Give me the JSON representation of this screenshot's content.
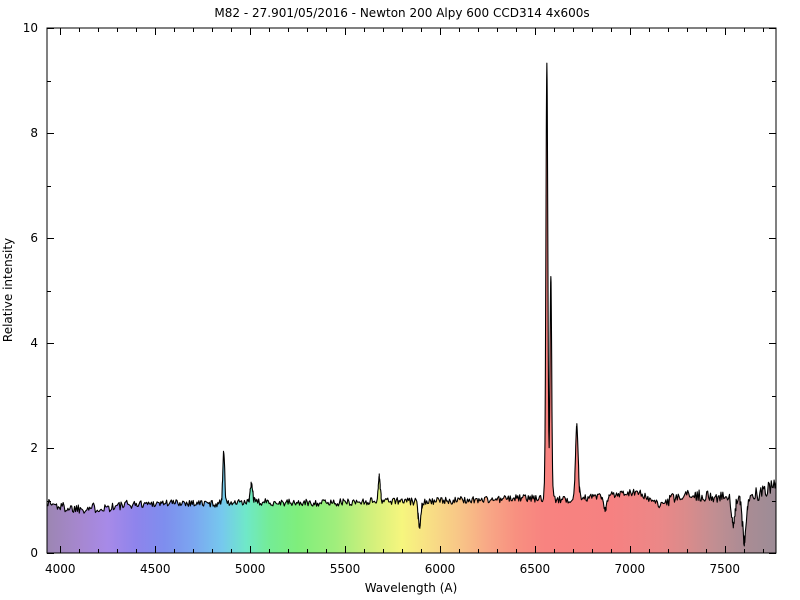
{
  "figure": {
    "background": "#ffffff"
  },
  "chart_data": {
    "type": "area",
    "title": "M82 - 27.901/05/2016 - Newton 200 Alpy 600 CCD314 4x600s",
    "xlabel": "Wavelength (A)",
    "ylabel": "Relative intensity",
    "xlim": [
      3930,
      7770
    ],
    "ylim": [
      0,
      10
    ],
    "x_major_ticks": [
      4000,
      4500,
      5000,
      5500,
      6000,
      6500,
      7000,
      7500
    ],
    "x_minor_step": 100,
    "y_major_ticks": [
      0,
      2,
      4,
      6,
      8,
      10
    ],
    "y_minor_step": 1,
    "grid": false,
    "legend": false,
    "line_color": "#000000",
    "frame_color": "#000000",
    "sampling_step_angstrom": 5,
    "continuum_anchors": [
      [
        3930,
        0.97
      ],
      [
        3990,
        0.89
      ],
      [
        4060,
        0.85
      ],
      [
        4180,
        0.86
      ],
      [
        4280,
        0.88
      ],
      [
        4400,
        0.93
      ],
      [
        4520,
        0.95
      ],
      [
        4650,
        0.96
      ],
      [
        4800,
        0.94
      ],
      [
        4950,
        0.95
      ],
      [
        5100,
        0.97
      ],
      [
        5250,
        0.95
      ],
      [
        5400,
        0.96
      ],
      [
        5550,
        0.97
      ],
      [
        5700,
        1.0
      ],
      [
        5850,
        0.98
      ],
      [
        6000,
        0.99
      ],
      [
        6150,
        1.01
      ],
      [
        6300,
        1.02
      ],
      [
        6430,
        1.05
      ],
      [
        6550,
        1.03
      ],
      [
        6650,
        1.01
      ],
      [
        6800,
        1.06
      ],
      [
        6930,
        1.13
      ],
      [
        7040,
        1.17
      ],
      [
        7110,
        1.0
      ],
      [
        7160,
        0.9
      ],
      [
        7240,
        1.05
      ],
      [
        7340,
        1.1
      ],
      [
        7440,
        1.07
      ],
      [
        7540,
        1.06
      ],
      [
        7650,
        1.08
      ],
      [
        7720,
        1.18
      ],
      [
        7770,
        1.28
      ]
    ],
    "features": [
      {
        "label": "emission-4861",
        "center": 4861,
        "sigma": 5,
        "amplitude": 1.0
      },
      {
        "label": "emission-5007",
        "center": 5007,
        "sigma": 7,
        "amplitude": 0.34
      },
      {
        "label": "emission-5680",
        "center": 5680,
        "sigma": 5,
        "amplitude": 0.46
      },
      {
        "label": "absorption-5892",
        "center": 5892,
        "sigma": 7,
        "amplitude": -0.46
      },
      {
        "label": "emission-6563",
        "center": 6563,
        "sigma": 5,
        "amplitude": 8.3
      },
      {
        "label": "emission-6584",
        "center": 6584,
        "sigma": 4.5,
        "amplitude": 4.25
      },
      {
        "label": "emission-6721",
        "center": 6721,
        "sigma": 7,
        "amplitude": 1.4
      },
      {
        "label": "absorption-6870",
        "center": 6870,
        "sigma": 10,
        "amplitude": -0.28
      },
      {
        "label": "absorption-7545",
        "center": 7545,
        "sigma": 9,
        "amplitude": -0.56
      },
      {
        "label": "absorption-7603",
        "center": 7603,
        "sigma": 11,
        "amplitude": -0.78
      }
    ],
    "noise": {
      "seed": 1337,
      "bands": [
        {
          "up_to": 4350,
          "amplitude": 0.1
        },
        {
          "up_to": 7200,
          "amplitude": 0.07
        },
        {
          "up_to": 7580,
          "amplitude": 0.11
        },
        {
          "up_to": 7780,
          "amplitude": 0.16
        }
      ]
    },
    "gradient_stops": [
      [
        3930,
        "#9c86b2"
      ],
      [
        4100,
        "#a687cf"
      ],
      [
        4250,
        "#a78ae8"
      ],
      [
        4400,
        "#8e84ec"
      ],
      [
        4550,
        "#7e8eee"
      ],
      [
        4700,
        "#7ba6f0"
      ],
      [
        4850,
        "#76c8ee"
      ],
      [
        4980,
        "#6fe8c8"
      ],
      [
        5100,
        "#74ec96"
      ],
      [
        5250,
        "#7fee7c"
      ],
      [
        5450,
        "#a0ee7c"
      ],
      [
        5650,
        "#d4f07c"
      ],
      [
        5800,
        "#f6f67e"
      ],
      [
        5950,
        "#f8de85"
      ],
      [
        6100,
        "#f8c687"
      ],
      [
        6250,
        "#f8a886"
      ],
      [
        6400,
        "#f89080"
      ],
      [
        6550,
        "#f88380"
      ],
      [
        6900,
        "#f68181"
      ],
      [
        7150,
        "#ec8787"
      ],
      [
        7300,
        "#da8b8b"
      ],
      [
        7450,
        "#c18e92"
      ],
      [
        7600,
        "#ab8c94"
      ],
      [
        7770,
        "#9d8c96"
      ]
    ]
  }
}
